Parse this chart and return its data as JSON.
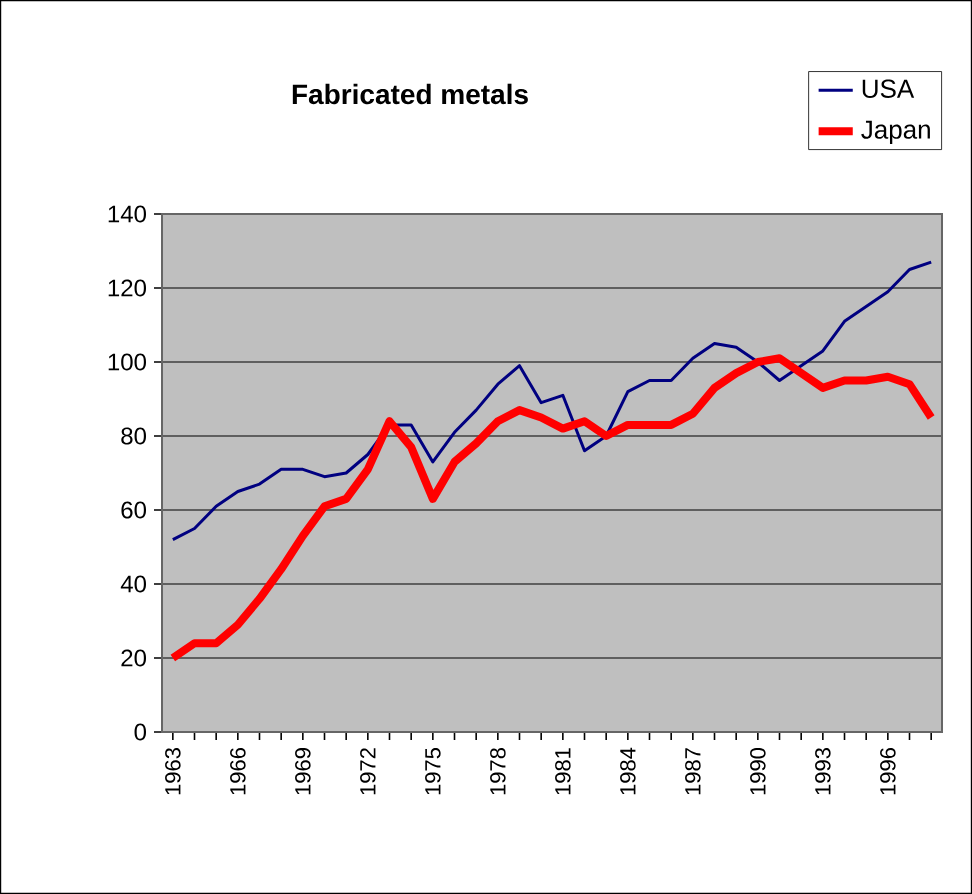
{
  "chart_data": {
    "type": "line",
    "title": "Fabricated metals",
    "categories": [
      "1963",
      null,
      null,
      "1966",
      null,
      null,
      "1969",
      null,
      null,
      "1972",
      null,
      null,
      "1975",
      null,
      null,
      "1978",
      null,
      null,
      "1981",
      null,
      null,
      "1984",
      null,
      null,
      "1987",
      null,
      null,
      "1990",
      null,
      null,
      "1993",
      null,
      null,
      "1996",
      null,
      null
    ],
    "series": [
      {
        "name": "USA",
        "color": "#000080",
        "values": [
          52,
          55,
          61,
          65,
          67,
          71,
          71,
          69,
          70,
          75,
          83,
          83,
          73,
          81,
          87,
          94,
          99,
          89,
          91,
          76,
          80,
          92,
          95,
          95,
          101,
          105,
          104,
          100,
          95,
          99,
          103,
          111,
          115,
          119,
          125,
          127
        ]
      },
      {
        "name": "Japan",
        "color": "#ff0000",
        "values": [
          20,
          24,
          24,
          29,
          36,
          44,
          53,
          61,
          63,
          71,
          84,
          77,
          63,
          73,
          78,
          84,
          87,
          85,
          82,
          84,
          80,
          83,
          83,
          83,
          86,
          93,
          97,
          100,
          101,
          97,
          93,
          95,
          95,
          96,
          94,
          85
        ]
      }
    ],
    "ylim": [
      0,
      140
    ],
    "yticks": [
      0,
      20,
      40,
      60,
      80,
      100,
      120,
      140
    ],
    "grid": "y",
    "legend": "top right"
  }
}
